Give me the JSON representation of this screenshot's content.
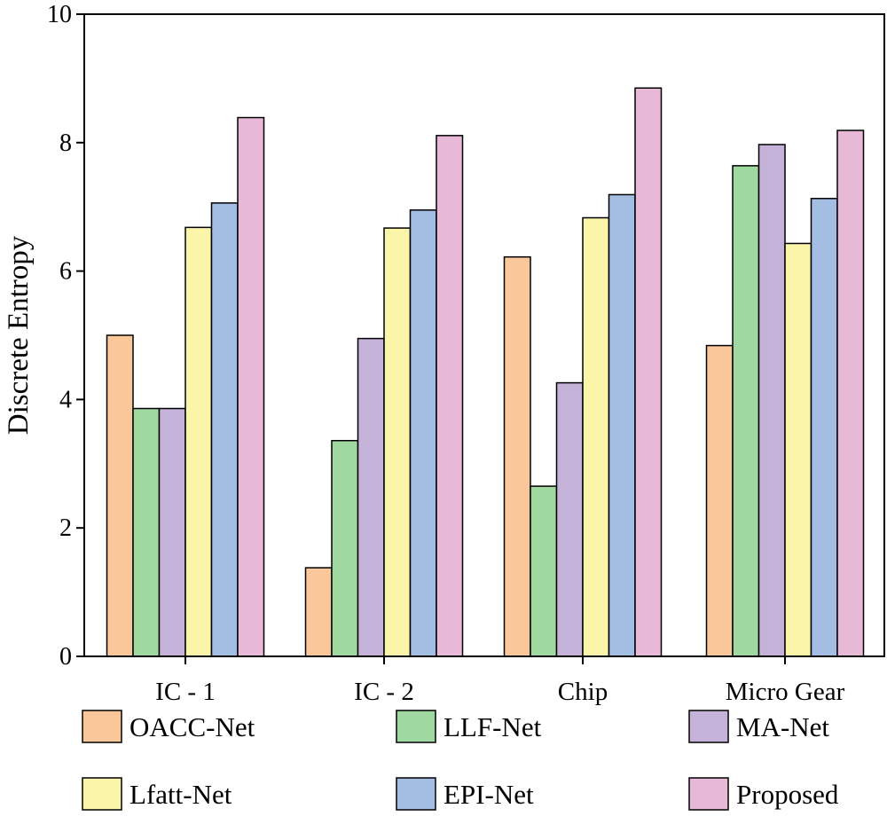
{
  "chart_data": {
    "type": "bar",
    "title": "",
    "xlabel": "",
    "ylabel": "Discrete Entropy",
    "ylim": [
      0,
      10
    ],
    "yticks": [
      "0",
      "2",
      "4",
      "6",
      "8",
      "10"
    ],
    "categories": [
      "IC - 1",
      "IC - 2",
      "Chip",
      "Micro Gear"
    ],
    "series": [
      {
        "name": "OACC-Net",
        "color": "#f9c79a",
        "values": [
          5.0,
          1.38,
          6.22,
          4.84
        ]
      },
      {
        "name": "LLF-Net",
        "color": "#9fd8a0",
        "values": [
          3.86,
          3.36,
          2.65,
          7.64
        ]
      },
      {
        "name": "MA-Net",
        "color": "#c4b2d8",
        "values": [
          3.86,
          4.95,
          4.26,
          7.97
        ]
      },
      {
        "name": "Lfatt-Net",
        "color": "#faf5a8",
        "values": [
          6.68,
          6.67,
          6.83,
          6.43
        ]
      },
      {
        "name": "EPI-Net",
        "color": "#a3bde3",
        "values": [
          7.06,
          6.95,
          7.19,
          7.13
        ]
      },
      {
        "name": "Proposed",
        "color": "#e8b9d7",
        "values": [
          8.39,
          8.11,
          8.85,
          8.19
        ]
      }
    ],
    "legend_position": "bottom",
    "grid": false
  }
}
